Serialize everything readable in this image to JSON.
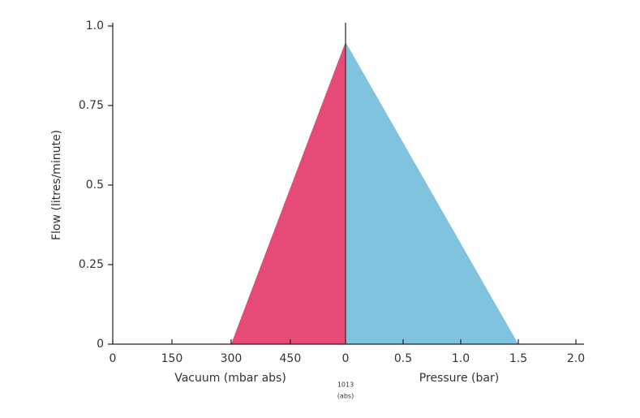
{
  "chart_data": [
    {
      "type": "area",
      "xlabel": "Vacuum (mbar abs)",
      "ylabel": "Flow (litres/minute)",
      "xlim": [
        0,
        590
      ],
      "xticks": [
        0,
        150,
        300,
        450
      ],
      "ylim": [
        0,
        1
      ],
      "yticks": [
        0,
        0.25,
        0.5,
        0.75,
        {
          "value": 1,
          "label": "1.0"
        }
      ],
      "series": [
        {
          "name": "Vacuum",
          "color": "#e54b76",
          "x": [
            300,
            590
          ],
          "values": [
            0,
            0.95
          ]
        }
      ]
    },
    {
      "type": "area",
      "xlabel": "Pressure (bar)",
      "annotation": [
        "1013",
        "(abs)"
      ],
      "xlim": [
        0,
        2
      ],
      "xticks": [
        0,
        0.5,
        {
          "value": 1,
          "label": "1.0"
        },
        1.5,
        {
          "value": 2,
          "label": "2.0"
        }
      ],
      "series": [
        {
          "name": "Pressure",
          "color": "#80c3df",
          "x": [
            0,
            1.5
          ],
          "values": [
            0.95,
            0
          ]
        }
      ]
    }
  ]
}
